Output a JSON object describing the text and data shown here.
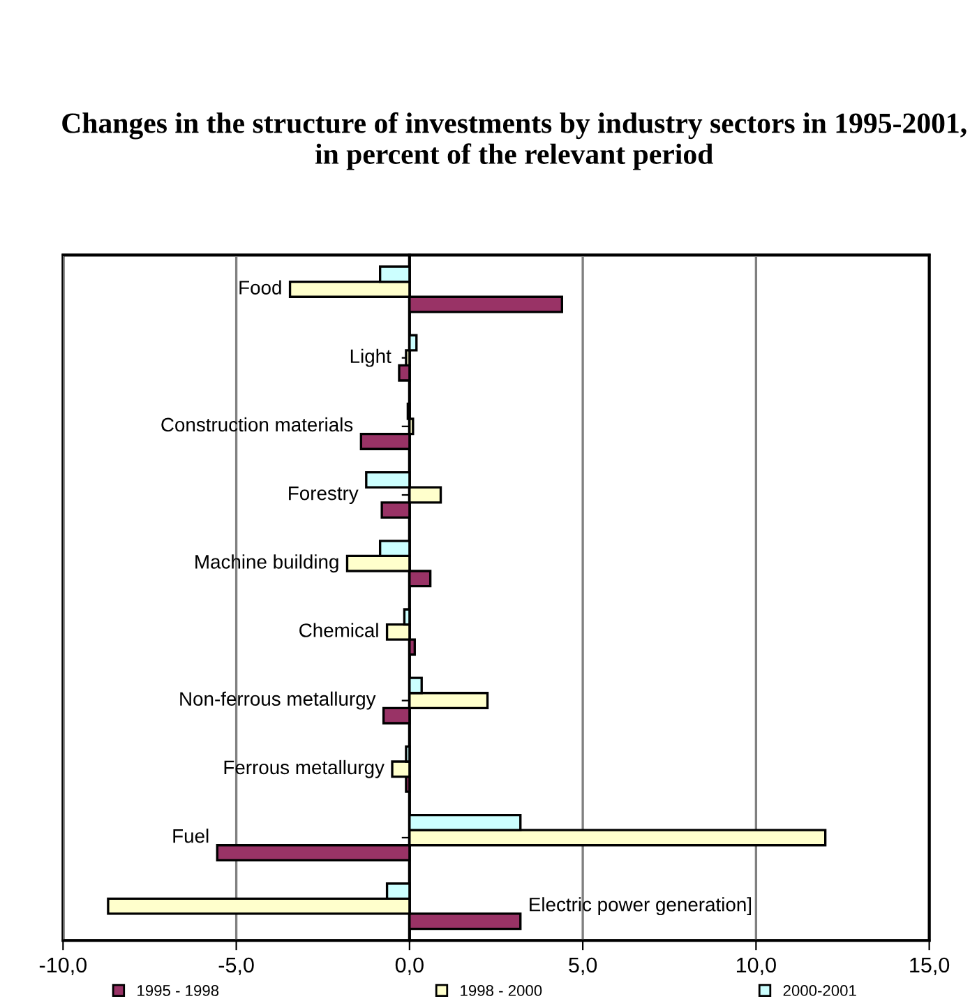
{
  "chart_data": {
    "type": "bar",
    "orientation": "horizontal",
    "title": "Changes in the structure of investments by industry sectors in 1995-2001, in percent of the relevant period",
    "categories": [
      "Food",
      "Light",
      "Construction materials",
      "Forestry",
      "Machine building",
      "Chemical",
      "Non-ferrous metallurgy",
      "Ferrous metallurgy",
      "Fuel",
      "Electric power generation]"
    ],
    "series": [
      {
        "name": "1995 - 1998",
        "color": "#993366",
        "values": [
          4.4,
          -0.3,
          -1.4,
          -0.8,
          0.6,
          0.15,
          -0.75,
          -0.1,
          -5.55,
          3.2
        ]
      },
      {
        "name": "1998 - 2000",
        "color": "#ffffcc",
        "values": [
          -3.45,
          -0.1,
          0.1,
          0.9,
          -1.8,
          -0.65,
          2.25,
          -0.5,
          12.0,
          -8.7
        ]
      },
      {
        "name": "2000-2001",
        "color": "#ccffff",
        "values": [
          -0.85,
          0.2,
          -0.05,
          -1.25,
          -0.85,
          -0.15,
          0.35,
          -0.1,
          3.2,
          -0.65
        ]
      }
    ],
    "xlim": [
      -10,
      15
    ],
    "xticks": [
      {
        "value": -10,
        "label": "-10,0"
      },
      {
        "value": -5,
        "label": "-5,0"
      },
      {
        "value": 0,
        "label": "0,0"
      },
      {
        "value": 5,
        "label": "5,0"
      },
      {
        "value": 10,
        "label": "10,0"
      },
      {
        "value": 15,
        "label": "15,0"
      }
    ],
    "grid": "x",
    "legend": "bottom"
  }
}
